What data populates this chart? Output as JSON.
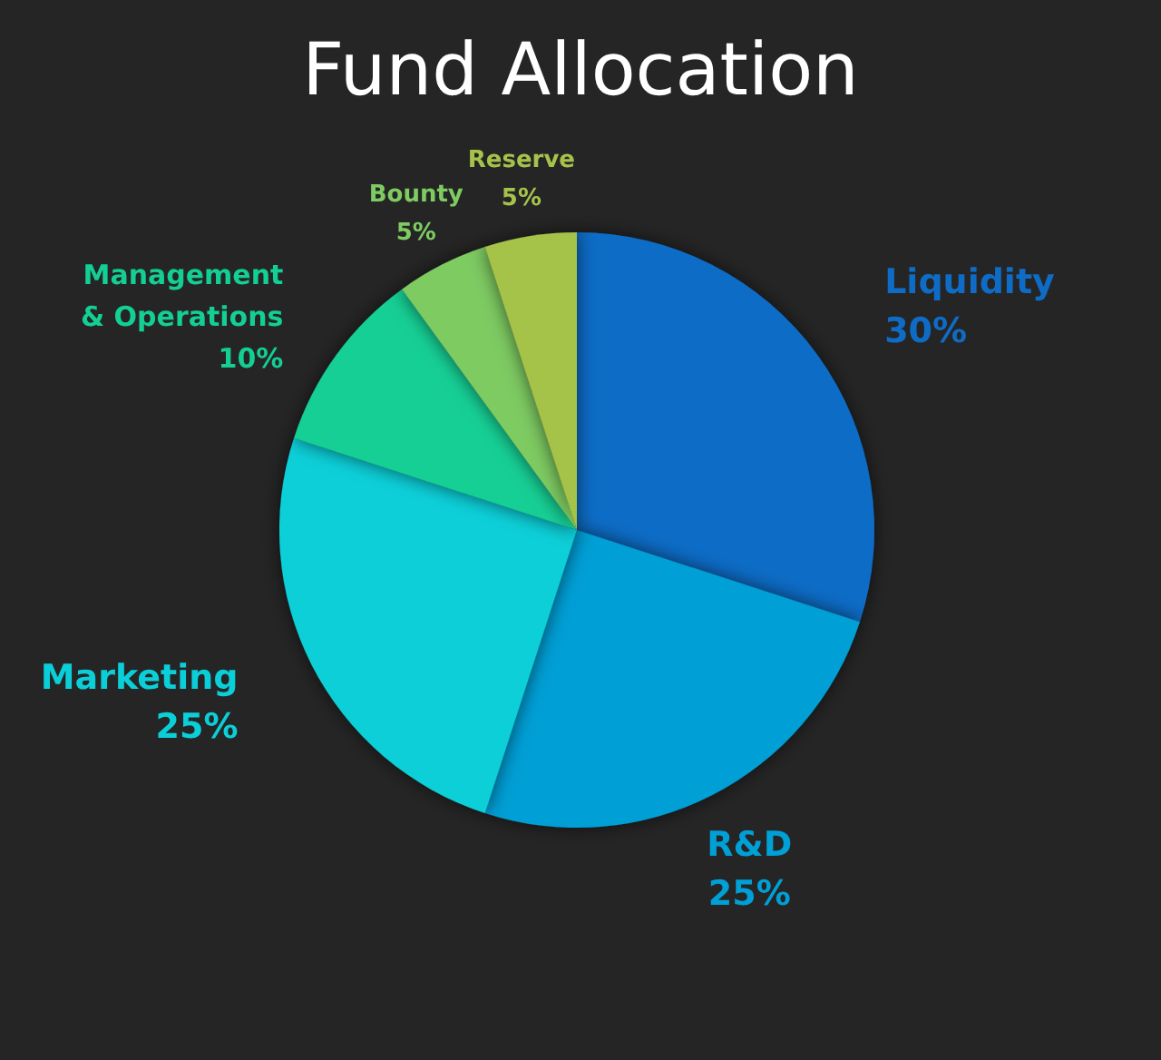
{
  "chart_data": {
    "type": "pie",
    "title": "Fund Allocation",
    "categories": [
      "Liquidity",
      "R&D",
      "Marketing",
      "Management\n& Operations",
      "Bounty",
      "Reserve"
    ],
    "values": [
      30,
      25,
      25,
      10,
      5,
      5
    ],
    "value_labels": [
      "30%",
      "25%",
      "25%",
      "10%",
      "5%",
      "5%"
    ],
    "colors": [
      "#0f6cc6",
      "#009fd6",
      "#0bcfd8",
      "#13cf94",
      "#7ecb62",
      "#a5c24a"
    ],
    "legend": false
  }
}
